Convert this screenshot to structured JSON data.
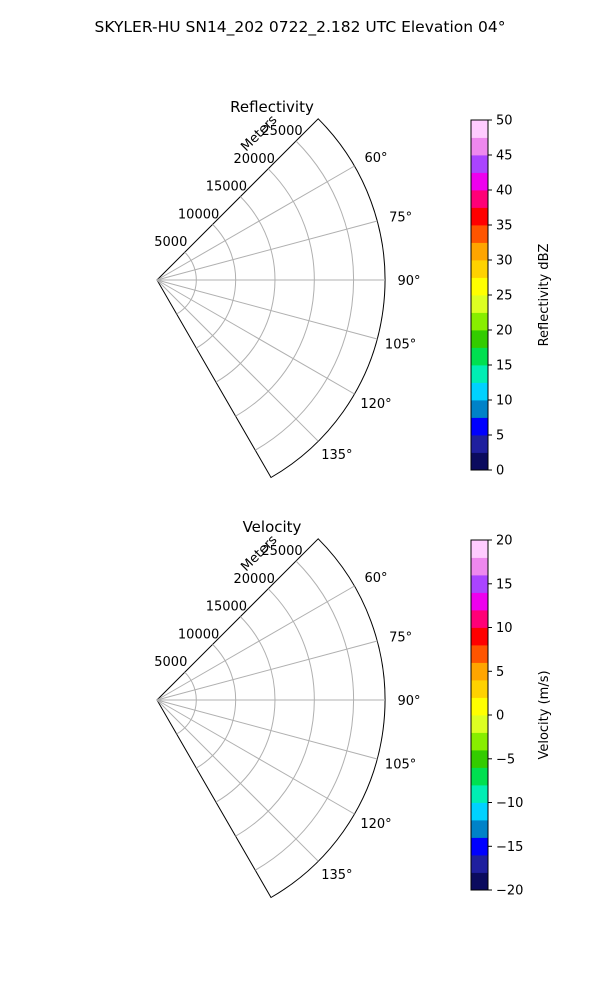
{
  "figure": {
    "title": "SKYLER-HU  SN14_202  0722_2.182 UTC Elevation 04°"
  },
  "chart_data": [
    {
      "type": "heatmap",
      "subtype": "polar-sector",
      "title": "Reflectivity",
      "range_label": "Meters",
      "range_ticks": [
        "5000",
        "10000",
        "15000",
        "20000",
        "25000"
      ],
      "range_values": [
        5000,
        10000,
        15000,
        20000,
        25000
      ],
      "range_max": 29000,
      "angle_ticks": [
        "60°",
        "75°",
        "90°",
        "105°",
        "120°",
        "135°"
      ],
      "angle_values": [
        60,
        75,
        90,
        105,
        120,
        135
      ],
      "angle_min": 45,
      "angle_max": 150,
      "colorbar": {
        "label": "Reflectivity dBZ",
        "ticks": [
          "0",
          "5",
          "10",
          "15",
          "20",
          "25",
          "30",
          "35",
          "40",
          "45",
          "50"
        ],
        "min": 0,
        "max": 50
      },
      "colors": [
        "#0b0b5e",
        "#1f1f9e",
        "#0000ff",
        "#0082c8",
        "#00d2ff",
        "#00eeb4",
        "#00e050",
        "#33cc00",
        "#88ee00",
        "#ddff22",
        "#ffff00",
        "#ffd200",
        "#ffa500",
        "#ff5500",
        "#ff0000",
        "#ff0077",
        "#ee00ee",
        "#aa44ff",
        "#ee88ee",
        "#ffccff"
      ],
      "grid": true
    },
    {
      "type": "heatmap",
      "subtype": "polar-sector",
      "title": "Velocity",
      "range_label": "Meters",
      "range_ticks": [
        "5000",
        "10000",
        "15000",
        "20000",
        "25000"
      ],
      "range_values": [
        5000,
        10000,
        15000,
        20000,
        25000
      ],
      "range_max": 29000,
      "angle_ticks": [
        "60°",
        "75°",
        "90°",
        "105°",
        "120°",
        "135°"
      ],
      "angle_values": [
        60,
        75,
        90,
        105,
        120,
        135
      ],
      "angle_min": 45,
      "angle_max": 150,
      "colorbar": {
        "label": "Velocity (m/s)",
        "ticks": [
          "20",
          "15",
          "10",
          "5",
          "0",
          "−5",
          "−10",
          "−15",
          "−20"
        ],
        "min": -20,
        "max": 20
      },
      "colors": [
        "#0b0b5e",
        "#1f1f9e",
        "#0000ff",
        "#0082c8",
        "#00d2ff",
        "#00eeb4",
        "#00e050",
        "#33cc00",
        "#88ee00",
        "#ddff22",
        "#ffff00",
        "#ffd200",
        "#ffa500",
        "#ff5500",
        "#ff0000",
        "#ff0077",
        "#ee00ee",
        "#aa44ff",
        "#ee88ee",
        "#ffccff"
      ],
      "grid": true
    }
  ]
}
